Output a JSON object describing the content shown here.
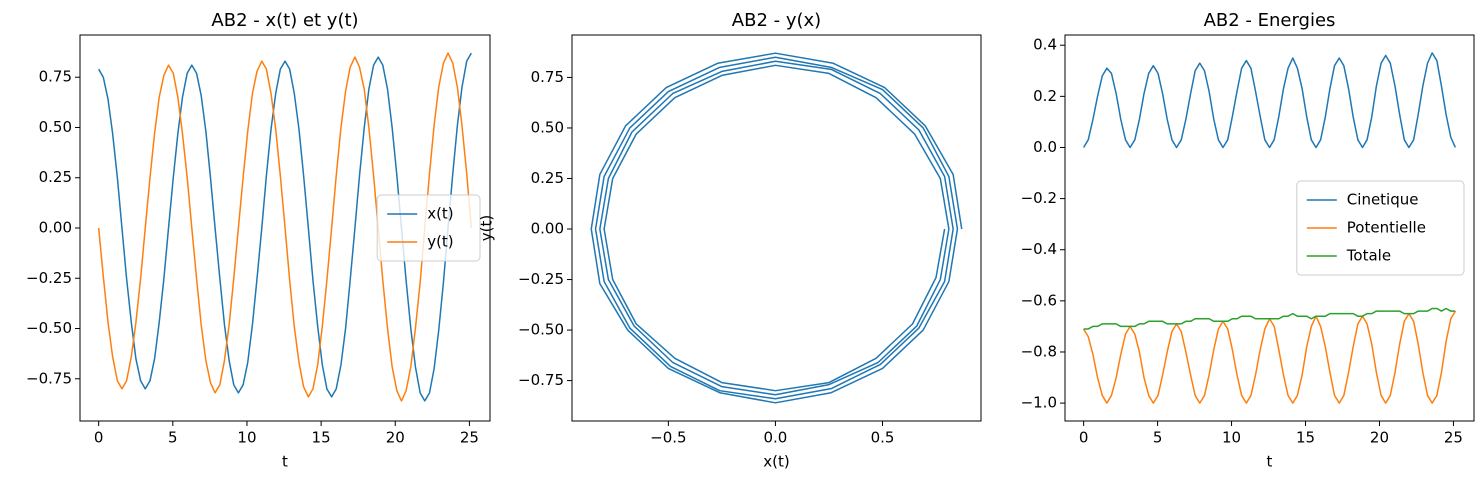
{
  "chart_data": [
    {
      "type": "line",
      "title": "AB2 - x(t) et y(t)",
      "xlabel": "t",
      "legend": "center right",
      "xlim": [
        -1.26,
        26.39
      ],
      "ylim": [
        -0.96,
        0.96
      ],
      "xticks": [
        0,
        5,
        10,
        15,
        20,
        25
      ],
      "yticks": [
        {
          "value": -0.75,
          "label": "−0.75"
        },
        {
          "value": -0.5,
          "label": "−0.50"
        },
        {
          "value": -0.25,
          "label": "−0.25"
        },
        {
          "value": 0,
          "label": "0.00"
        },
        {
          "value": 0.25,
          "label": "0.25"
        },
        {
          "value": 0.5,
          "label": "0.50"
        },
        {
          "value": 0.75,
          "label": "0.75"
        }
      ],
      "x": [
        0,
        0.31,
        0.63,
        0.94,
        1.26,
        1.57,
        1.88,
        2.2,
        2.51,
        2.83,
        3.14,
        3.46,
        3.77,
        4.08,
        4.4,
        4.71,
        5.03,
        5.34,
        5.65,
        5.97,
        6.28,
        6.6,
        6.91,
        7.23,
        7.54,
        7.85,
        8.17,
        8.48,
        8.8,
        9.11,
        9.42,
        9.74,
        10.05,
        10.37,
        10.68,
        11.0,
        11.31,
        11.62,
        11.94,
        12.25,
        12.57,
        12.88,
        13.19,
        13.51,
        13.82,
        14.14,
        14.45,
        14.77,
        15.08,
        15.39,
        15.71,
        16.02,
        16.34,
        16.65,
        16.96,
        17.28,
        17.59,
        17.91,
        18.22,
        18.54,
        18.85,
        19.16,
        19.48,
        19.79,
        20.11,
        20.42,
        20.73,
        21.05,
        21.36,
        21.68,
        21.99,
        22.31,
        22.62,
        22.93,
        23.25,
        23.56,
        23.88,
        24.19,
        24.5,
        24.82,
        25.13
      ],
      "series": [
        {
          "name": "x(t)",
          "color": "#1f77b4",
          "values": [
            0.79,
            0.75,
            0.64,
            0.47,
            0.25,
            0,
            -0.25,
            -0.47,
            -0.65,
            -0.76,
            -0.8,
            -0.76,
            -0.65,
            -0.47,
            -0.25,
            0,
            0.25,
            0.47,
            0.65,
            0.77,
            0.81,
            0.77,
            0.66,
            0.48,
            0.25,
            0,
            -0.25,
            -0.48,
            -0.66,
            -0.78,
            -0.82,
            -0.78,
            -0.67,
            -0.48,
            -0.25,
            0,
            0.26,
            0.49,
            0.67,
            0.79,
            0.83,
            0.79,
            0.67,
            0.49,
            0.26,
            0,
            -0.26,
            -0.49,
            -0.68,
            -0.8,
            -0.84,
            -0.8,
            -0.68,
            -0.5,
            -0.26,
            0,
            0.26,
            0.5,
            0.69,
            0.81,
            0.85,
            0.81,
            0.69,
            0.5,
            0.26,
            0,
            -0.26,
            -0.5,
            -0.69,
            -0.82,
            -0.86,
            -0.82,
            -0.7,
            -0.51,
            -0.27,
            0,
            0.27,
            0.51,
            0.7,
            0.83,
            0.87
          ]
        },
        {
          "name": "y(t)",
          "color": "#ff7f0e",
          "values": [
            0,
            -0.24,
            -0.47,
            -0.64,
            -0.76,
            -0.8,
            -0.76,
            -0.64,
            -0.47,
            -0.25,
            0,
            0.25,
            0.47,
            0.65,
            0.76,
            0.81,
            0.77,
            0.65,
            0.47,
            0.25,
            0,
            -0.25,
            -0.48,
            -0.66,
            -0.77,
            -0.82,
            -0.78,
            -0.66,
            -0.48,
            -0.25,
            0,
            0.25,
            0.48,
            0.67,
            0.78,
            0.83,
            0.79,
            0.67,
            0.49,
            0.26,
            0,
            -0.26,
            -0.49,
            -0.67,
            -0.79,
            -0.84,
            -0.8,
            -0.68,
            -0.49,
            -0.26,
            0,
            0.26,
            0.5,
            0.68,
            0.8,
            0.85,
            0.8,
            0.69,
            0.5,
            0.26,
            0,
            -0.26,
            -0.5,
            -0.69,
            -0.81,
            -0.86,
            -0.81,
            -0.69,
            -0.5,
            -0.27,
            0,
            0.27,
            0.51,
            0.7,
            0.82,
            0.87,
            0.82,
            0.7,
            0.51,
            0.27,
            0
          ]
        }
      ]
    },
    {
      "type": "line",
      "title": "AB2 - y(x)",
      "xlabel": "x(t)",
      "ylabel": "y(t)",
      "xlim": [
        -0.95,
        0.96
      ],
      "ylim": [
        -0.95,
        0.96
      ],
      "xticks": [
        {
          "value": -0.5,
          "label": "−0.5"
        },
        {
          "value": 0,
          "label": "0.0"
        },
        {
          "value": 0.5,
          "label": "0.5"
        }
      ],
      "yticks": [
        {
          "value": -0.75,
          "label": "−0.75"
        },
        {
          "value": -0.5,
          "label": "−0.50"
        },
        {
          "value": -0.25,
          "label": "−0.25"
        },
        {
          "value": 0,
          "label": "0.00"
        },
        {
          "value": 0.25,
          "label": "0.25"
        },
        {
          "value": 0.5,
          "label": "0.50"
        },
        {
          "value": 0.75,
          "label": "0.75"
        }
      ],
      "x": [
        0.79,
        0.75,
        0.64,
        0.47,
        0.25,
        0,
        -0.25,
        -0.47,
        -0.65,
        -0.76,
        -0.8,
        -0.76,
        -0.65,
        -0.47,
        -0.25,
        0,
        0.25,
        0.47,
        0.65,
        0.77,
        0.81,
        0.77,
        0.66,
        0.48,
        0.25,
        0,
        -0.25,
        -0.48,
        -0.66,
        -0.78,
        -0.82,
        -0.78,
        -0.67,
        -0.48,
        -0.25,
        0,
        0.26,
        0.49,
        0.67,
        0.79,
        0.83,
        0.79,
        0.67,
        0.49,
        0.26,
        0,
        -0.26,
        -0.49,
        -0.68,
        -0.8,
        -0.84,
        -0.8,
        -0.68,
        -0.5,
        -0.26,
        0,
        0.26,
        0.5,
        0.69,
        0.81,
        0.85,
        0.81,
        0.69,
        0.5,
        0.26,
        0,
        -0.26,
        -0.5,
        -0.69,
        -0.82,
        -0.86,
        -0.82,
        -0.7,
        -0.51,
        -0.27,
        0,
        0.27,
        0.51,
        0.7,
        0.83,
        0.87
      ],
      "series": [
        {
          "color": "#1f77b4",
          "values": [
            0,
            -0.24,
            -0.47,
            -0.64,
            -0.76,
            -0.8,
            -0.76,
            -0.64,
            -0.47,
            -0.25,
            0,
            0.25,
            0.47,
            0.65,
            0.76,
            0.81,
            0.77,
            0.65,
            0.47,
            0.25,
            0,
            -0.25,
            -0.48,
            -0.66,
            -0.77,
            -0.82,
            -0.78,
            -0.66,
            -0.48,
            -0.25,
            0,
            0.25,
            0.48,
            0.67,
            0.78,
            0.83,
            0.79,
            0.67,
            0.49,
            0.26,
            0,
            -0.26,
            -0.49,
            -0.67,
            -0.79,
            -0.84,
            -0.8,
            -0.68,
            -0.49,
            -0.26,
            0,
            0.26,
            0.5,
            0.68,
            0.8,
            0.85,
            0.8,
            0.69,
            0.5,
            0.26,
            0,
            -0.26,
            -0.5,
            -0.69,
            -0.81,
            -0.86,
            -0.81,
            -0.69,
            -0.5,
            -0.27,
            0,
            0.27,
            0.51,
            0.7,
            0.82,
            0.87,
            0.82,
            0.7,
            0.51,
            0.27,
            0
          ]
        }
      ]
    },
    {
      "type": "line",
      "title": "AB2 - Energies",
      "xlabel": "t",
      "legend": "center right",
      "xlim": [
        -1.26,
        26.39
      ],
      "ylim": [
        -1.07,
        0.44
      ],
      "xticks": [
        0,
        5,
        10,
        15,
        20,
        25
      ],
      "yticks": [
        {
          "value": -1,
          "label": "−1.0"
        },
        {
          "value": -0.8,
          "label": "−0.8"
        },
        {
          "value": -0.6,
          "label": "−0.6"
        },
        {
          "value": -0.4,
          "label": "−0.4"
        },
        {
          "value": -0.2,
          "label": "−0.2"
        },
        {
          "value": 0,
          "label": "0.0"
        },
        {
          "value": 0.2,
          "label": "0.2"
        },
        {
          "value": 0.4,
          "label": "0.4"
        }
      ],
      "x": [
        0,
        0.31,
        0.63,
        0.94,
        1.26,
        1.57,
        1.88,
        2.2,
        2.51,
        2.83,
        3.14,
        3.46,
        3.77,
        4.08,
        4.4,
        4.71,
        5.03,
        5.34,
        5.65,
        5.97,
        6.28,
        6.6,
        6.91,
        7.23,
        7.54,
        7.85,
        8.17,
        8.48,
        8.8,
        9.11,
        9.42,
        9.74,
        10.05,
        10.37,
        10.68,
        11.0,
        11.31,
        11.62,
        11.94,
        12.25,
        12.57,
        12.88,
        13.19,
        13.51,
        13.82,
        14.14,
        14.45,
        14.77,
        15.08,
        15.39,
        15.71,
        16.02,
        16.34,
        16.65,
        16.96,
        17.28,
        17.59,
        17.91,
        18.22,
        18.54,
        18.85,
        19.16,
        19.48,
        19.79,
        20.11,
        20.42,
        20.73,
        21.05,
        21.36,
        21.68,
        21.99,
        22.31,
        22.62,
        22.93,
        23.25,
        23.56,
        23.88,
        24.19,
        24.5,
        24.82,
        25.13
      ],
      "series": [
        {
          "name": "Cinetique",
          "color": "#1f77b4",
          "values": [
            0,
            0.03,
            0.11,
            0.2,
            0.28,
            0.31,
            0.29,
            0.21,
            0.11,
            0.03,
            0,
            0.03,
            0.11,
            0.21,
            0.29,
            0.32,
            0.29,
            0.21,
            0.11,
            0.03,
            0,
            0.03,
            0.11,
            0.21,
            0.3,
            0.33,
            0.3,
            0.22,
            0.11,
            0.03,
            0,
            0.03,
            0.12,
            0.22,
            0.31,
            0.34,
            0.31,
            0.22,
            0.12,
            0.03,
            0,
            0.03,
            0.12,
            0.23,
            0.31,
            0.35,
            0.31,
            0.23,
            0.12,
            0.03,
            0,
            0.03,
            0.12,
            0.23,
            0.32,
            0.35,
            0.32,
            0.23,
            0.12,
            0.03,
            0,
            0.03,
            0.12,
            0.24,
            0.33,
            0.36,
            0.33,
            0.24,
            0.13,
            0.03,
            0,
            0.03,
            0.13,
            0.24,
            0.33,
            0.37,
            0.34,
            0.24,
            0.13,
            0.04,
            0
          ]
        },
        {
          "name": "Potentielle",
          "color": "#ff7f0e",
          "values": [
            -0.71,
            -0.74,
            -0.81,
            -0.9,
            -0.97,
            -1,
            -0.97,
            -0.9,
            -0.81,
            -0.73,
            -0.7,
            -0.73,
            -0.8,
            -0.9,
            -0.97,
            -1,
            -0.97,
            -0.89,
            -0.8,
            -0.72,
            -0.69,
            -0.72,
            -0.8,
            -0.89,
            -0.97,
            -1,
            -0.97,
            -0.89,
            -0.79,
            -0.71,
            -0.68,
            -0.71,
            -0.79,
            -0.89,
            -0.97,
            -1,
            -0.97,
            -0.89,
            -0.79,
            -0.71,
            -0.67,
            -0.7,
            -0.79,
            -0.89,
            -0.97,
            -1,
            -0.97,
            -0.89,
            -0.78,
            -0.7,
            -0.66,
            -0.7,
            -0.78,
            -0.88,
            -0.97,
            -1,
            -0.97,
            -0.88,
            -0.78,
            -0.69,
            -0.66,
            -0.69,
            -0.77,
            -0.88,
            -0.97,
            -1,
            -0.97,
            -0.88,
            -0.77,
            -0.68,
            -0.65,
            -0.68,
            -0.77,
            -0.88,
            -0.97,
            -1,
            -0.97,
            -0.88,
            -0.76,
            -0.67,
            -0.64
          ]
        },
        {
          "name": "Totale",
          "color": "#2ca02c",
          "values": [
            -0.71,
            -0.71,
            -0.7,
            -0.7,
            -0.69,
            -0.69,
            -0.69,
            -0.69,
            -0.7,
            -0.7,
            -0.7,
            -0.7,
            -0.69,
            -0.69,
            -0.68,
            -0.68,
            -0.68,
            -0.68,
            -0.69,
            -0.69,
            -0.69,
            -0.69,
            -0.68,
            -0.68,
            -0.67,
            -0.67,
            -0.67,
            -0.67,
            -0.68,
            -0.68,
            -0.68,
            -0.68,
            -0.67,
            -0.67,
            -0.66,
            -0.66,
            -0.66,
            -0.67,
            -0.67,
            -0.67,
            -0.67,
            -0.67,
            -0.67,
            -0.66,
            -0.66,
            -0.65,
            -0.66,
            -0.66,
            -0.66,
            -0.67,
            -0.66,
            -0.66,
            -0.66,
            -0.65,
            -0.65,
            -0.65,
            -0.65,
            -0.65,
            -0.65,
            -0.66,
            -0.66,
            -0.65,
            -0.65,
            -0.64,
            -0.64,
            -0.64,
            -0.64,
            -0.64,
            -0.64,
            -0.65,
            -0.65,
            -0.65,
            -0.64,
            -0.64,
            -0.64,
            -0.63,
            -0.63,
            -0.64,
            -0.63,
            -0.64,
            -0.64
          ]
        }
      ]
    }
  ]
}
